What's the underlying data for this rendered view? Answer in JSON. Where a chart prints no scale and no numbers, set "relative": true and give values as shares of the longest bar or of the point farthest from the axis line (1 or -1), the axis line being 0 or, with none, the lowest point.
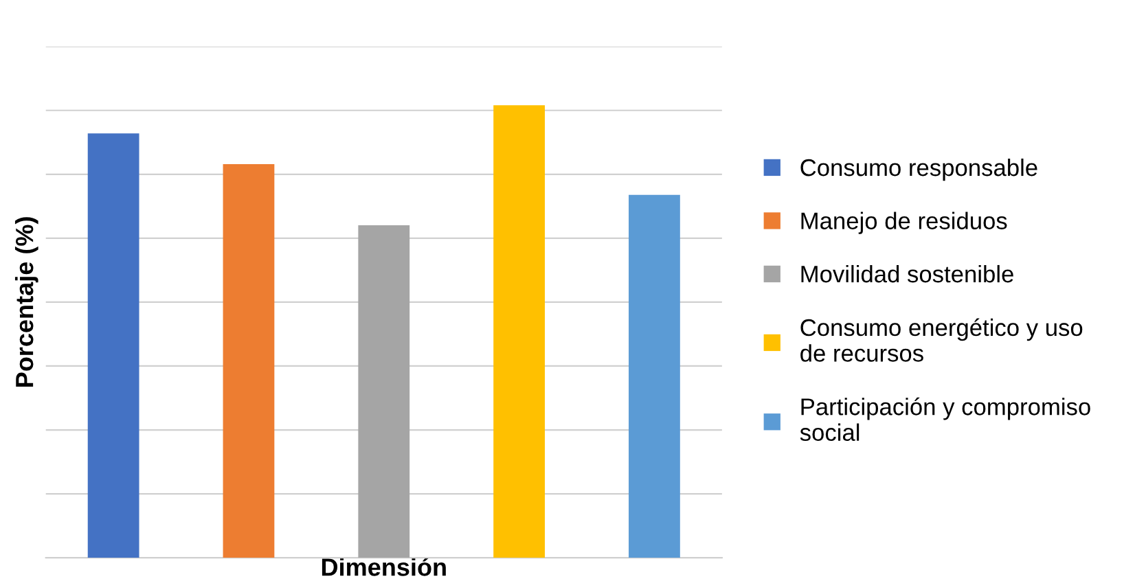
{
  "chart_data": {
    "type": "bar",
    "relative": true,
    "stacked": true,
    "xlabel": "Dimensión",
    "ylabel": "Porcentaje (%)",
    "categories": [
      null,
      null,
      null,
      null,
      null
    ],
    "series": [
      {
        "name": "Consumo responsable",
        "color": "#4472c4",
        "values": [
          0.938,
          null,
          null,
          null,
          null
        ]
      },
      {
        "name": "Manejo de residuos",
        "color": "#ed7d31",
        "values": [
          null,
          0.87,
          null,
          null,
          null
        ]
      },
      {
        "name": "Movilidad sostenible",
        "color": "#a5a5a5",
        "values": [
          null,
          null,
          0.735,
          null,
          null
        ]
      },
      {
        "name": "Consumo energético y uso de recursos",
        "color": "#ffc000",
        "values": [
          null,
          null,
          null,
          1,
          null
        ]
      },
      {
        "name": "Participación y compromiso social",
        "color": "#5b9bd5",
        "values": [
          null,
          null,
          null,
          null,
          0.802
        ]
      }
    ],
    "grid": "y",
    "legend": "right",
    "tick_labels": false
  }
}
